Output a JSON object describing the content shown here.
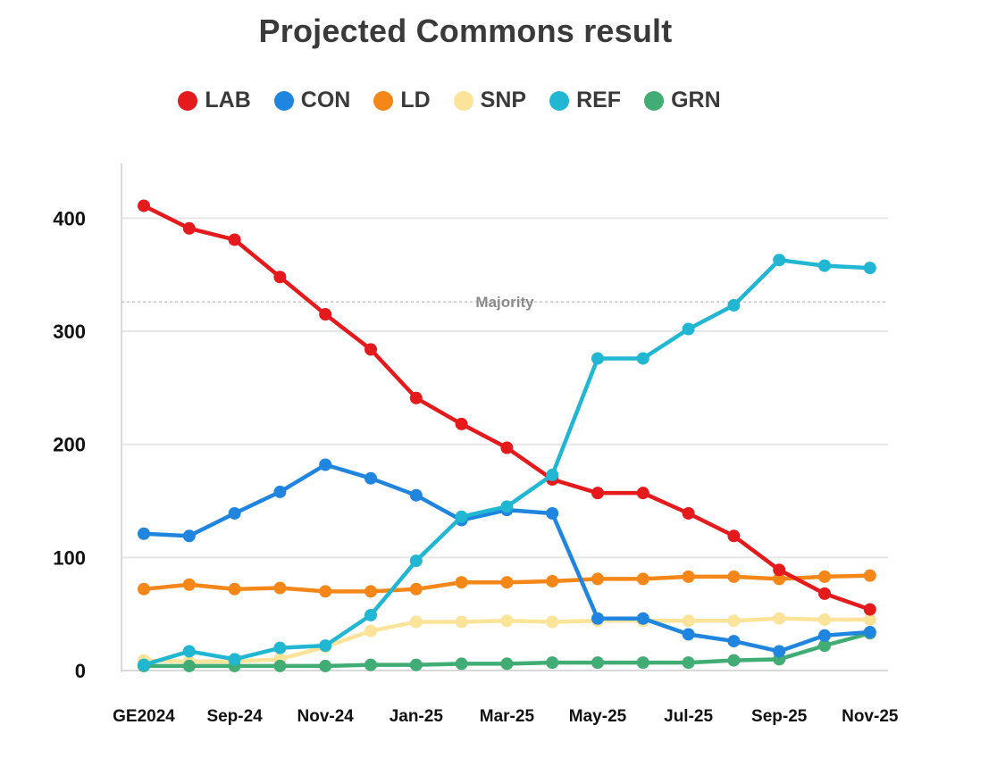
{
  "chart_data": {
    "type": "line",
    "title": "Projected Commons result",
    "xlabel": "",
    "ylabel": "",
    "ylim": [
      0,
      460
    ],
    "yticks": [
      0,
      100,
      200,
      300,
      400
    ],
    "grid": true,
    "legend_position": "top-center",
    "x_tick_labels": [
      "GE2024",
      "Sep-24",
      "Nov-24",
      "Jan-25",
      "Mar-25",
      "May-25",
      "Jul-25",
      "Sep-25",
      "Nov-25"
    ],
    "reference_line": {
      "label": "Majority",
      "value": 326
    },
    "series": [
      {
        "name": "LAB",
        "color": "#e41a1c",
        "values": [
          411,
          391,
          381,
          348,
          315,
          284,
          241,
          218,
          197,
          169,
          157,
          157,
          139,
          119,
          89,
          68,
          54
        ]
      },
      {
        "name": "CON",
        "color": "#1f85de",
        "values": [
          121,
          119,
          139,
          158,
          182,
          170,
          155,
          133,
          142,
          139,
          46,
          46,
          32,
          26,
          17,
          31,
          34
        ]
      },
      {
        "name": "LD",
        "color": "#f58618",
        "values": [
          72,
          76,
          72,
          73,
          70,
          70,
          72,
          78,
          78,
          79,
          81,
          81,
          83,
          83,
          81,
          83,
          84
        ]
      },
      {
        "name": "SNP",
        "color": "#fbe39a",
        "values": [
          9,
          8,
          8,
          10,
          21,
          35,
          43,
          43,
          44,
          43,
          44,
          44,
          44,
          44,
          46,
          45,
          45
        ]
      },
      {
        "name": "REF",
        "color": "#21b6d1",
        "values": [
          5,
          17,
          10,
          20,
          22,
          49,
          97,
          136,
          145,
          173,
          276,
          276,
          302,
          323,
          363,
          358,
          356
        ]
      },
      {
        "name": "GRN",
        "color": "#41ad74",
        "values": [
          4,
          4,
          4,
          4,
          4,
          5,
          5,
          6,
          6,
          7,
          7,
          7,
          7,
          9,
          10,
          22,
          33
        ]
      }
    ]
  }
}
